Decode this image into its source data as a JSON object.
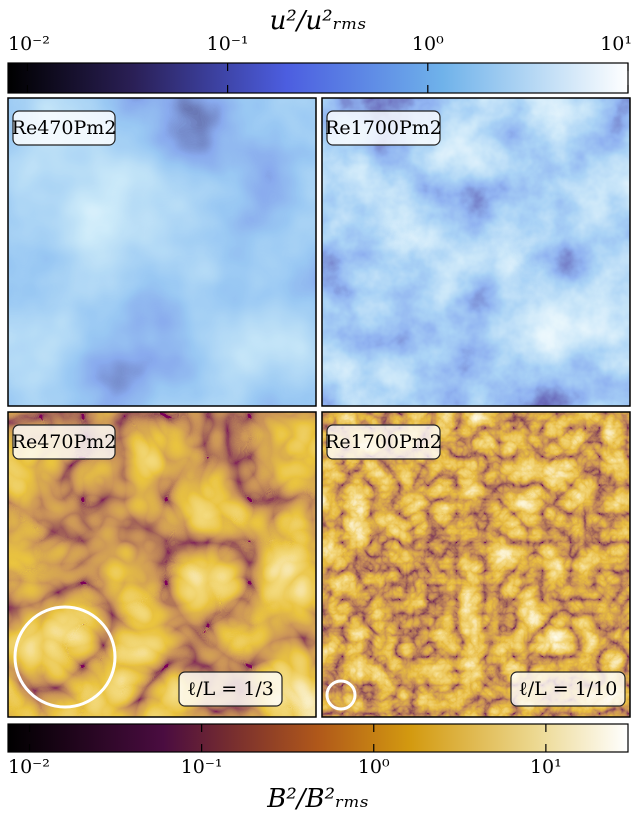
{
  "colorbars": [
    {
      "label": "u²/u²ᵣₘₛ",
      "xlim": [
        0.008,
        10
      ],
      "log": true,
      "xticks": [
        {
          "value": 0.01,
          "label": "10⁻²"
        },
        {
          "value": 0.1,
          "label": "10⁻¹"
        },
        {
          "value": 1,
          "label": "10⁰"
        },
        {
          "value": 10,
          "label": "10¹"
        }
      ]
    },
    {
      "label": "B²/B²ᵣₘₛ",
      "xlim": [
        0.0075,
        30
      ],
      "log": true,
      "xticks": [
        {
          "value": 0.01,
          "label": "10⁻²"
        },
        {
          "value": 0.1,
          "label": "10⁻¹"
        },
        {
          "value": 1,
          "label": "10⁰"
        },
        {
          "value": 10,
          "label": "10¹"
        }
      ]
    }
  ],
  "panels": [
    {
      "label": "Re470Pm2"
    },
    {
      "label": "Re1700Pm2"
    },
    {
      "label": "Re470Pm2",
      "scale_label": "ℓ/L = 1/3"
    },
    {
      "label": "Re1700Pm2",
      "scale_label": "ℓ/L = 1/10"
    }
  ]
}
